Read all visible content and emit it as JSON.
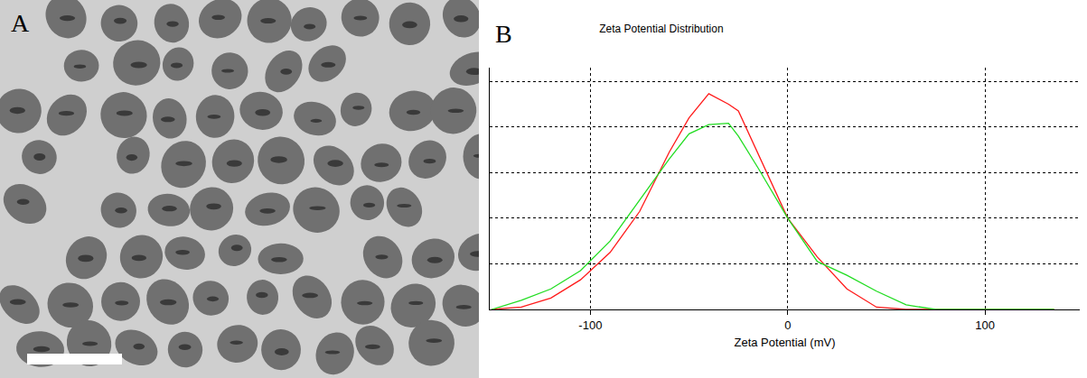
{
  "panel_letters": [
    "A",
    "B"
  ],
  "chart_data": {
    "type": "line",
    "title": "Zeta Potential Distribution",
    "x_label": "Zeta Potential (mV)",
    "x": [
      -150,
      -135,
      -120,
      -105,
      -90,
      -75,
      -60,
      -50,
      -40,
      -30,
      -25,
      -15,
      0,
      15,
      30,
      45,
      60,
      75,
      90,
      105,
      120,
      135
    ],
    "series": [
      {
        "color": "#ff1a1a",
        "values": [
          0,
          0.05,
          0.25,
          0.65,
          1.25,
          2.15,
          3.45,
          4.2,
          4.73,
          4.5,
          4.35,
          3.4,
          2.0,
          1.15,
          0.45,
          0.05,
          0,
          0,
          0,
          0,
          0,
          0
        ]
      },
      {
        "color": "#22dd22",
        "values": [
          0,
          0.2,
          0.45,
          0.85,
          1.5,
          2.4,
          3.3,
          3.85,
          4.05,
          4.08,
          3.8,
          3.1,
          2.0,
          1.05,
          0.75,
          0.4,
          0.1,
          0,
          0,
          0,
          0,
          0
        ]
      }
    ],
    "xlim": [
      -151,
      148
    ],
    "xticks": [
      -100,
      0,
      100
    ],
    "ylim": [
      0,
      5.3
    ],
    "yticks": [
      0,
      1,
      2,
      3,
      4,
      5
    ],
    "grid": true,
    "tick_labels": "x"
  }
}
